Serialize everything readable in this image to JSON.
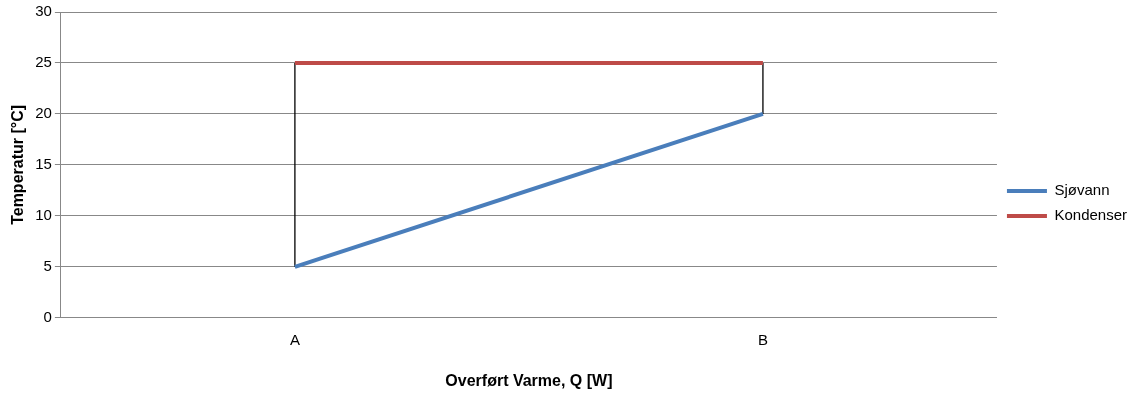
{
  "chart_data": {
    "type": "line",
    "xlabel": "Overført Varme, Q [W]",
    "ylabel": "Temperatur [°C]",
    "categories": [
      "A",
      "B"
    ],
    "series": [
      {
        "name": "Sjøvann",
        "color": "#4a7ebb",
        "values": [
          5,
          20
        ]
      },
      {
        "name": "Kondenser",
        "color": "#be4b48",
        "values": [
          25,
          25
        ]
      },
      {
        "color": "#000000",
        "x": [
          "A",
          "A"
        ],
        "values": [
          5,
          25
        ]
      },
      {
        "color": "#000000",
        "x": [
          "B",
          "B"
        ],
        "values": [
          20,
          25
        ]
      }
    ],
    "ylim": [
      0,
      30
    ],
    "yticks": [
      0,
      5,
      10,
      15,
      20,
      25,
      30
    ],
    "grid": "y",
    "legend": "right",
    "marker": "none",
    "line_style": "solid"
  }
}
